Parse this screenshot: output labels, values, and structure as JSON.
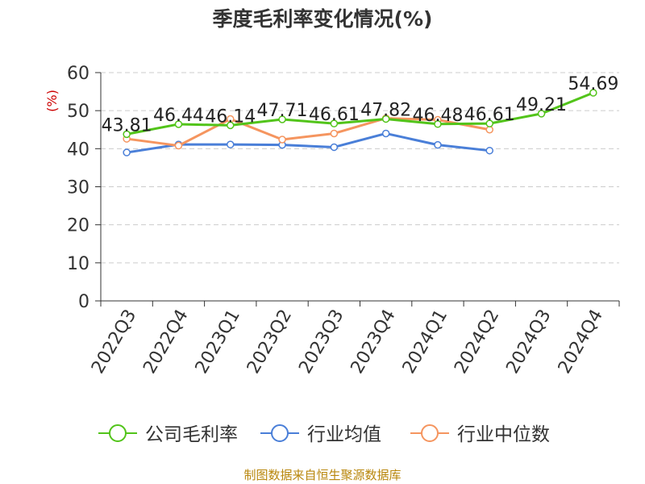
{
  "chart_data": {
    "type": "line",
    "title": "季度毛利率变化情况(%)",
    "ylabel": "(%)",
    "xlabel": "",
    "categories": [
      "2022Q3",
      "2022Q4",
      "2023Q1",
      "2023Q2",
      "2023Q3",
      "2023Q4",
      "2024Q1",
      "2024Q2",
      "2024Q3",
      "2024Q4"
    ],
    "ylim": [
      0,
      60
    ],
    "yticks": [
      0,
      10,
      20,
      30,
      40,
      50,
      60
    ],
    "grid": true,
    "legend_position": "bottom",
    "series": [
      {
        "name": "公司毛利率",
        "color": "#52c41a",
        "values": [
          43.81,
          46.44,
          46.14,
          47.71,
          46.61,
          47.82,
          46.48,
          46.61,
          49.21,
          54.69
        ],
        "labels": [
          "43.81",
          "46.44",
          "46.14",
          "47.71",
          "46.61",
          "47.82",
          "46.48",
          "46.61",
          "49.21",
          "54.69"
        ]
      },
      {
        "name": "行业均值",
        "color": "#4a7fd8",
        "values": [
          39.0,
          41.1,
          41.1,
          41.0,
          40.4,
          44.0,
          41.0,
          39.5,
          null,
          null
        ]
      },
      {
        "name": "行业中位数",
        "color": "#f5955f",
        "values": [
          42.6,
          40.8,
          47.8,
          42.4,
          44.0,
          48.0,
          47.6,
          45.0,
          null,
          null
        ]
      }
    ]
  },
  "source": "制图数据来自恒生聚源数据库"
}
